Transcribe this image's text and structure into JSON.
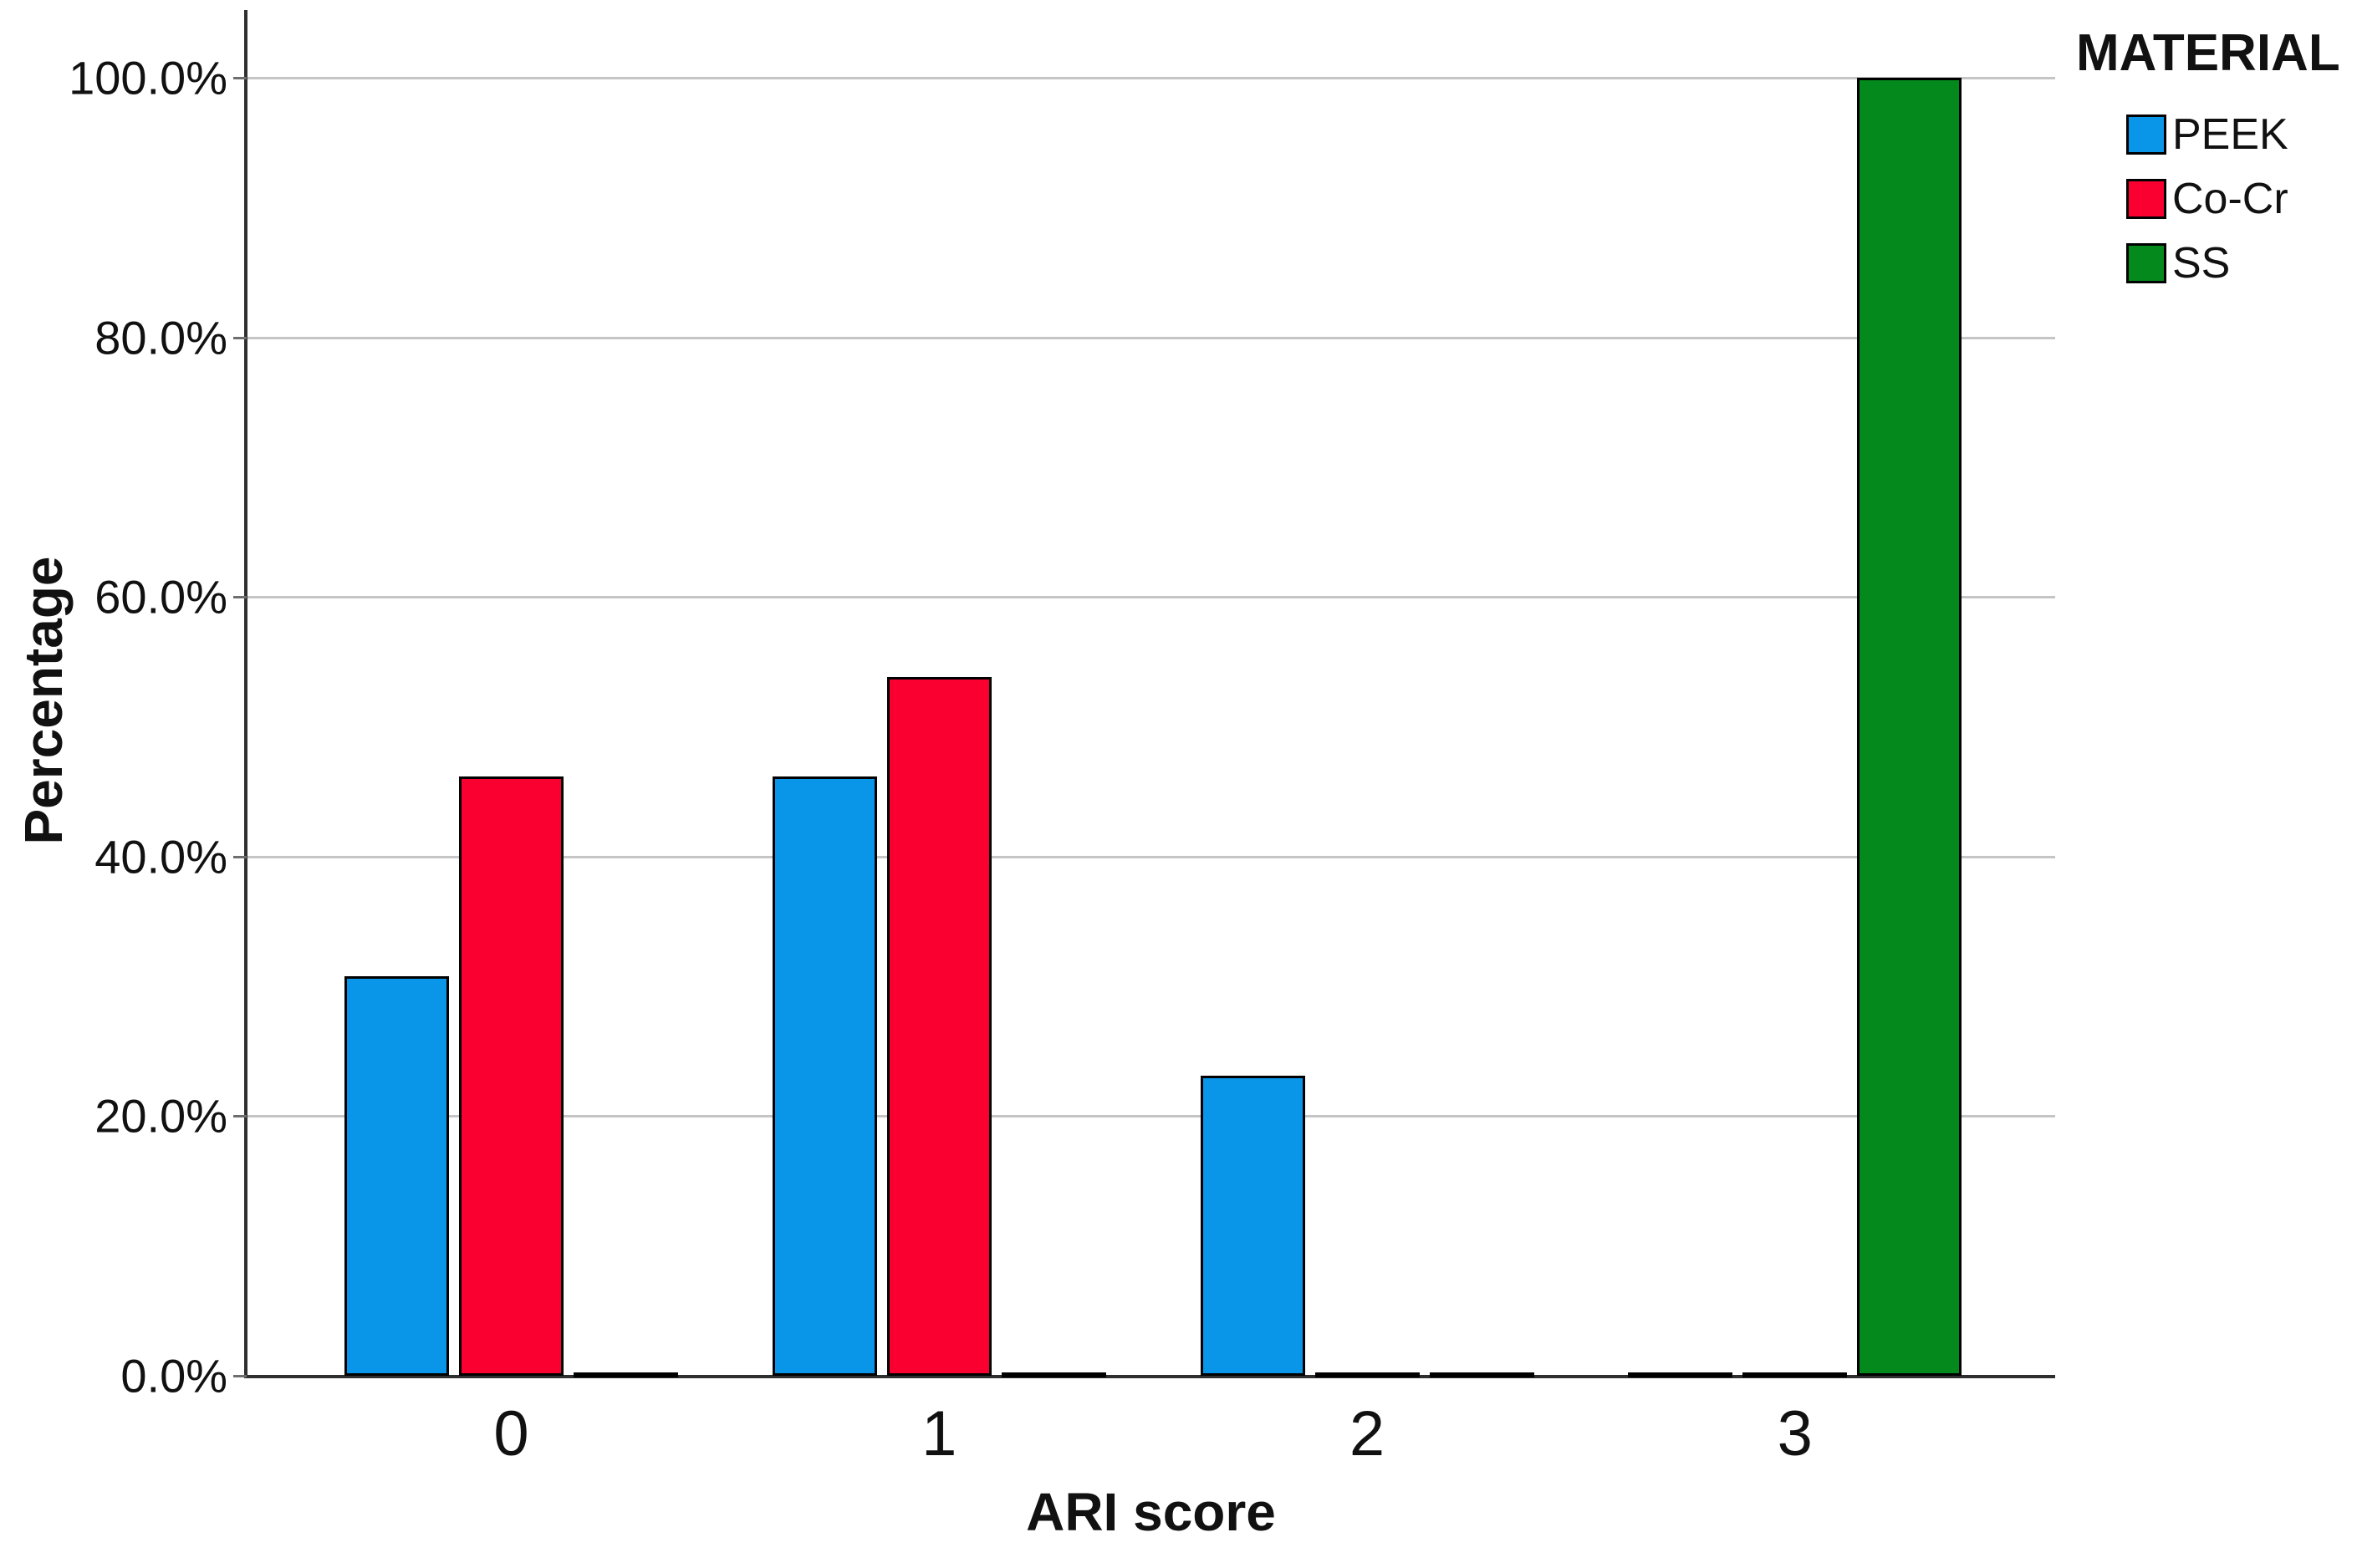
{
  "chart_data": {
    "type": "bar",
    "title": "",
    "xlabel": "ARI score",
    "ylabel": "Percentage",
    "categories": [
      "0",
      "1",
      "2",
      "3"
    ],
    "series": [
      {
        "name": "PEEK",
        "color": "#0996e8",
        "values": [
          30.8,
          46.2,
          23.1,
          0
        ]
      },
      {
        "name": "Co-Cr",
        "color": "#fa0031",
        "values": [
          46.2,
          53.8,
          0,
          0
        ]
      },
      {
        "name": "SS",
        "color": "#048a1c",
        "values": [
          0,
          0,
          0,
          100
        ]
      }
    ],
    "y_ticks": [
      {
        "value": 0,
        "label": "0.0%"
      },
      {
        "value": 20,
        "label": "20.0%"
      },
      {
        "value": 40,
        "label": "40.0%"
      },
      {
        "value": 60,
        "label": "60.0%"
      },
      {
        "value": 80,
        "label": "80.0%"
      },
      {
        "value": 100,
        "label": "100.0%"
      }
    ],
    "ylim": [
      0,
      105
    ],
    "grid": true,
    "legend_title": "MATERIAL",
    "legend_position": "top-right",
    "colors": {
      "axis": "#2f2f2f",
      "gridline": "#c5c5c5",
      "bar_border": "#000000",
      "background": "#ffffff",
      "text": "#111111"
    }
  }
}
